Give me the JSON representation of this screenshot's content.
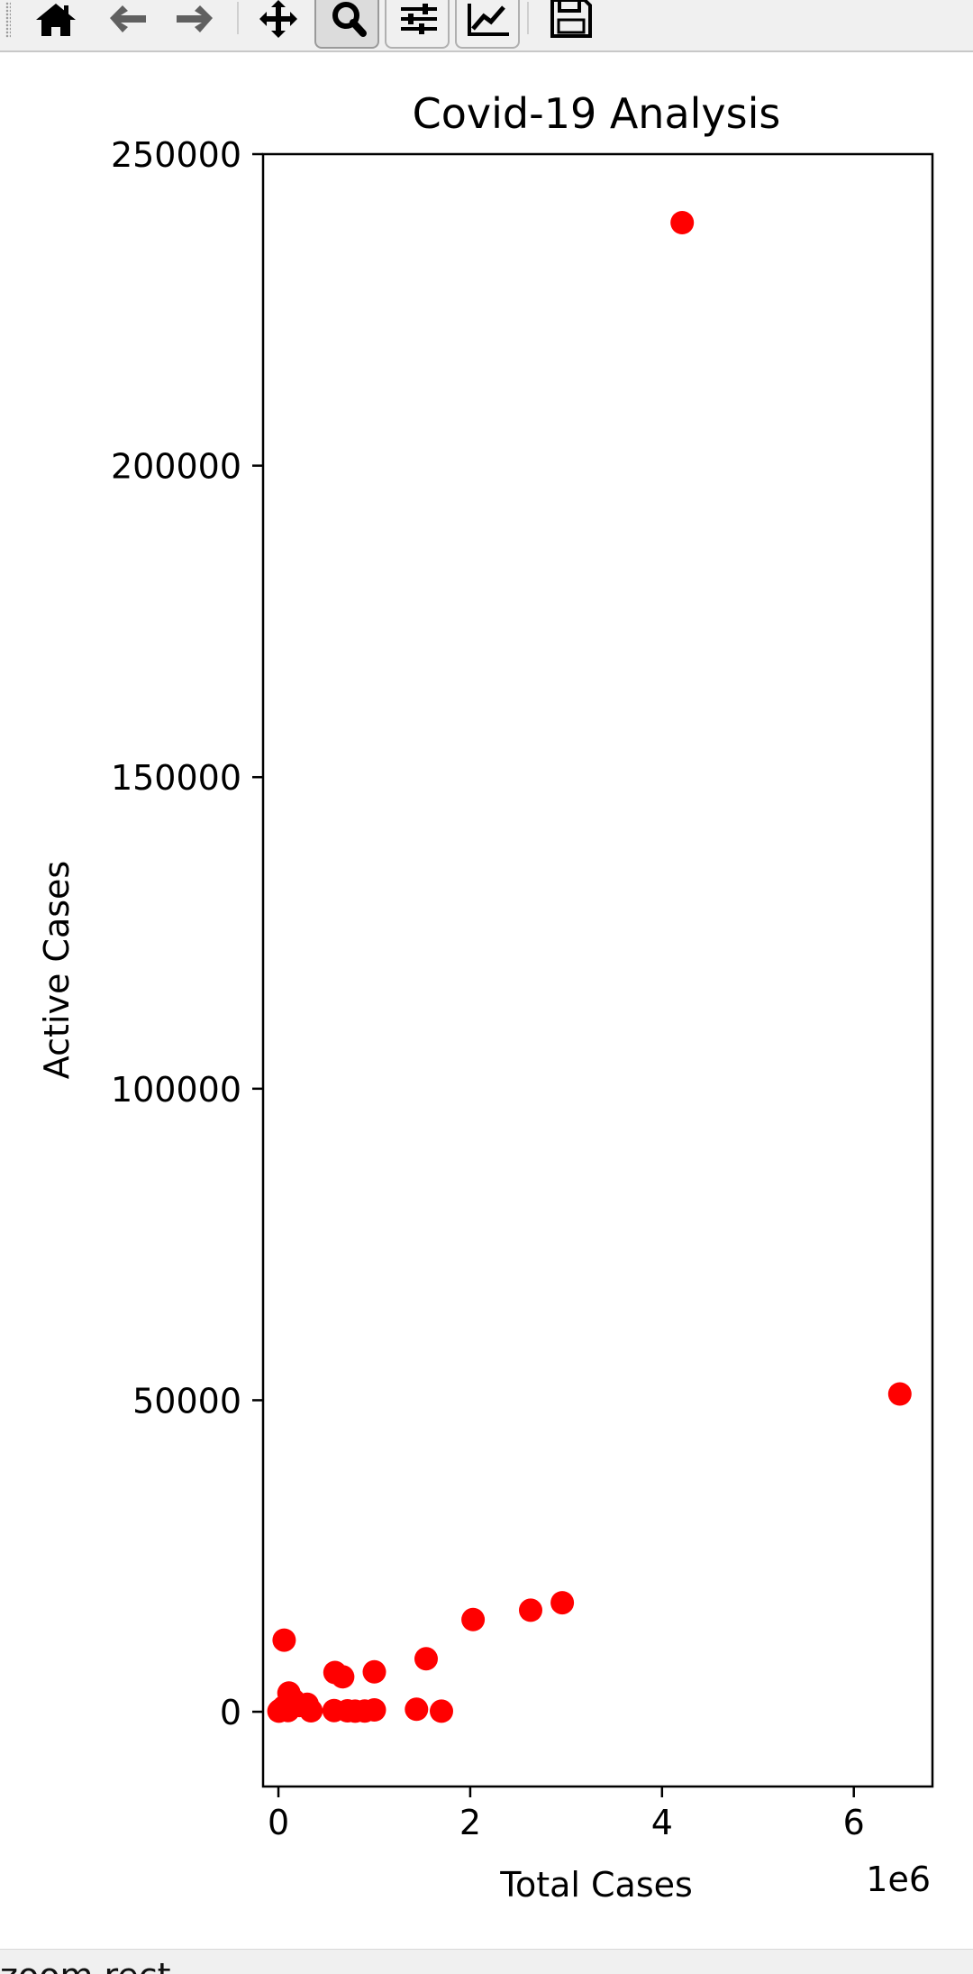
{
  "toolbar": {
    "buttons": [
      {
        "name": "home-icon",
        "active": false
      },
      {
        "name": "back-arrow-icon",
        "active": false
      },
      {
        "name": "forward-arrow-icon",
        "active": false
      },
      {
        "name": "pan-move-icon",
        "active": false
      },
      {
        "name": "zoom-magnifier-icon",
        "active": true
      },
      {
        "name": "subplots-config-icon",
        "active": false
      },
      {
        "name": "edit-axis-lines-icon",
        "active": false
      },
      {
        "name": "save-floppy-icon",
        "active": false
      }
    ]
  },
  "status": {
    "text": "zoom rect"
  },
  "chart_data": {
    "type": "scatter",
    "title": "Covid-19 Analysis",
    "xlabel": "Total Cases",
    "ylabel": "Active Cases",
    "x_offset_label": "1e6",
    "xlim": [
      -160000,
      6820000
    ],
    "ylim": [
      -12000,
      250000
    ],
    "xticks": [
      0,
      2000000,
      4000000,
      6000000
    ],
    "xtick_labels": [
      "0",
      "2",
      "4",
      "6"
    ],
    "yticks": [
      0,
      50000,
      100000,
      150000,
      200000,
      250000
    ],
    "ytick_labels": [
      "0",
      "50000",
      "100000",
      "150000",
      "200000",
      "250000"
    ],
    "grid": false,
    "marker_color": "#ff0000",
    "points": [
      {
        "x": 4210000,
        "y": 239000
      },
      {
        "x": 6480000,
        "y": 51000
      },
      {
        "x": 2960000,
        "y": 17500
      },
      {
        "x": 2630000,
        "y": 16300
      },
      {
        "x": 2030000,
        "y": 14800
      },
      {
        "x": 60000,
        "y": 11500
      },
      {
        "x": 1540000,
        "y": 8500
      },
      {
        "x": 1000000,
        "y": 6400
      },
      {
        "x": 590000,
        "y": 6300
      },
      {
        "x": 670000,
        "y": 5600
      },
      {
        "x": 110000,
        "y": 3000
      },
      {
        "x": 160000,
        "y": 1800
      },
      {
        "x": 300000,
        "y": 1200
      },
      {
        "x": 220000,
        "y": 1000
      },
      {
        "x": 60000,
        "y": 800
      },
      {
        "x": 20000,
        "y": 300
      },
      {
        "x": 5000,
        "y": 100
      },
      {
        "x": 100000,
        "y": 200
      },
      {
        "x": 340000,
        "y": 150
      },
      {
        "x": 580000,
        "y": 200
      },
      {
        "x": 720000,
        "y": 150
      },
      {
        "x": 800000,
        "y": 100
      },
      {
        "x": 900000,
        "y": 120
      },
      {
        "x": 1000000,
        "y": 300
      },
      {
        "x": 1440000,
        "y": 400
      },
      {
        "x": 1700000,
        "y": 100
      }
    ]
  }
}
